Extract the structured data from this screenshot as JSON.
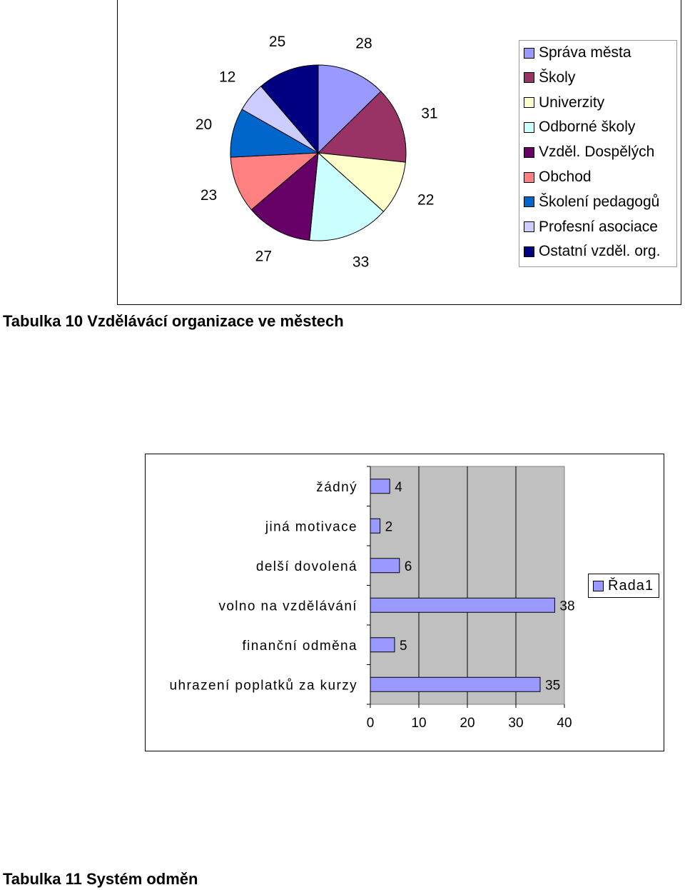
{
  "chart_data": [
    {
      "type": "pie",
      "categories": [
        "Správa města",
        "Školy",
        "Univerzity",
        "Odborné školy",
        "Vzděl. Dospělých",
        "Obchod",
        "Školení pedagogů",
        "Profesní asociace",
        "Ostatní vzděl. org."
      ],
      "values": [
        28,
        31,
        22,
        33,
        27,
        23,
        20,
        12,
        25
      ],
      "colors": [
        "#9999ff",
        "#993366",
        "#ffffcc",
        "#ccffff",
        "#660066",
        "#ff8080",
        "#0066cc",
        "#ccccff",
        "#000080"
      ],
      "legend_position": "right"
    },
    {
      "type": "bar",
      "orientation": "horizontal",
      "categories": [
        "žádný",
        "jiná motivace",
        "delší dovolená",
        "volno na vzdělávání",
        "finanční odměna",
        "uhrazení poplatků za kurzy"
      ],
      "series": [
        {
          "name": "Řada1",
          "values": [
            4,
            2,
            6,
            38,
            5,
            35
          ],
          "color": "#9999ff"
        }
      ],
      "xlim": [
        0,
        40
      ],
      "xticks": [
        "0",
        "10",
        "20",
        "30",
        "40"
      ],
      "grid": true,
      "plot_background": "#c0c0c0",
      "legend_position": "right"
    }
  ],
  "captions": {
    "table10": "Tabulka 10  Vzdělávácí organizace ve městech",
    "table11": "Tabulka 11  Systém odměn"
  }
}
